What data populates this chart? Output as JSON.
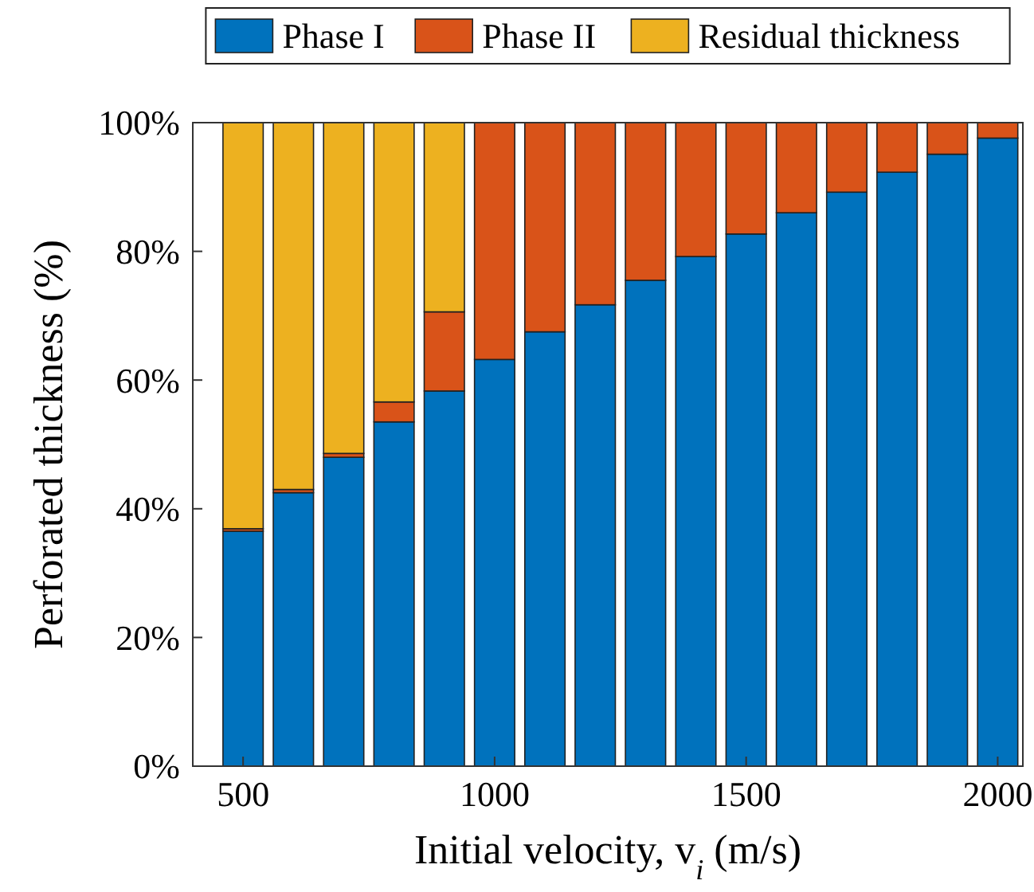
{
  "chart_data": {
    "type": "bar",
    "stacked": true,
    "xlabel": "Initial velocity, $_{}$v$_{i}$ (m/s)",
    "ylabel": "Perforated thickness (%)",
    "x": [
      500,
      600,
      700,
      800,
      900,
      1000,
      1100,
      1200,
      1300,
      1400,
      1500,
      1600,
      1700,
      1800,
      1900,
      2000
    ],
    "series": [
      {
        "name": "Phase I",
        "color": "#0072bd",
        "values": [
          36.5,
          42.5,
          48,
          53.5,
          58.3,
          63.2,
          67.5,
          71.7,
          75.5,
          79.2,
          82.7,
          86,
          89.2,
          92.3,
          95.1,
          97.6
        ]
      },
      {
        "name": "Phase II",
        "color": "#d95319",
        "values": [
          0.4,
          0.5,
          0.6,
          3.1,
          12.3,
          36.8,
          32.5,
          28.3,
          24.5,
          20.8,
          17.3,
          14,
          10.8,
          7.7,
          4.9,
          2.4
        ]
      },
      {
        "name": "Residual thickness",
        "color": "#edb120",
        "values": [
          63.1,
          57,
          51.4,
          43.4,
          29.4,
          0,
          0,
          0,
          0,
          0,
          0,
          0,
          0,
          0,
          0,
          0
        ]
      }
    ],
    "xlim": [
      400,
      2050
    ],
    "xticks": [
      500,
      1000,
      1500,
      2000
    ],
    "ylim": [
      0,
      100
    ],
    "yticks": [
      {
        "value": 0,
        "label": "0%"
      },
      {
        "value": 20,
        "label": "20%"
      },
      {
        "value": 40,
        "label": "40%"
      },
      {
        "value": 60,
        "label": "60%"
      },
      {
        "value": 80,
        "label": "80%"
      },
      {
        "value": 100,
        "label": "100%"
      }
    ],
    "grid": false,
    "legend": "top"
  }
}
